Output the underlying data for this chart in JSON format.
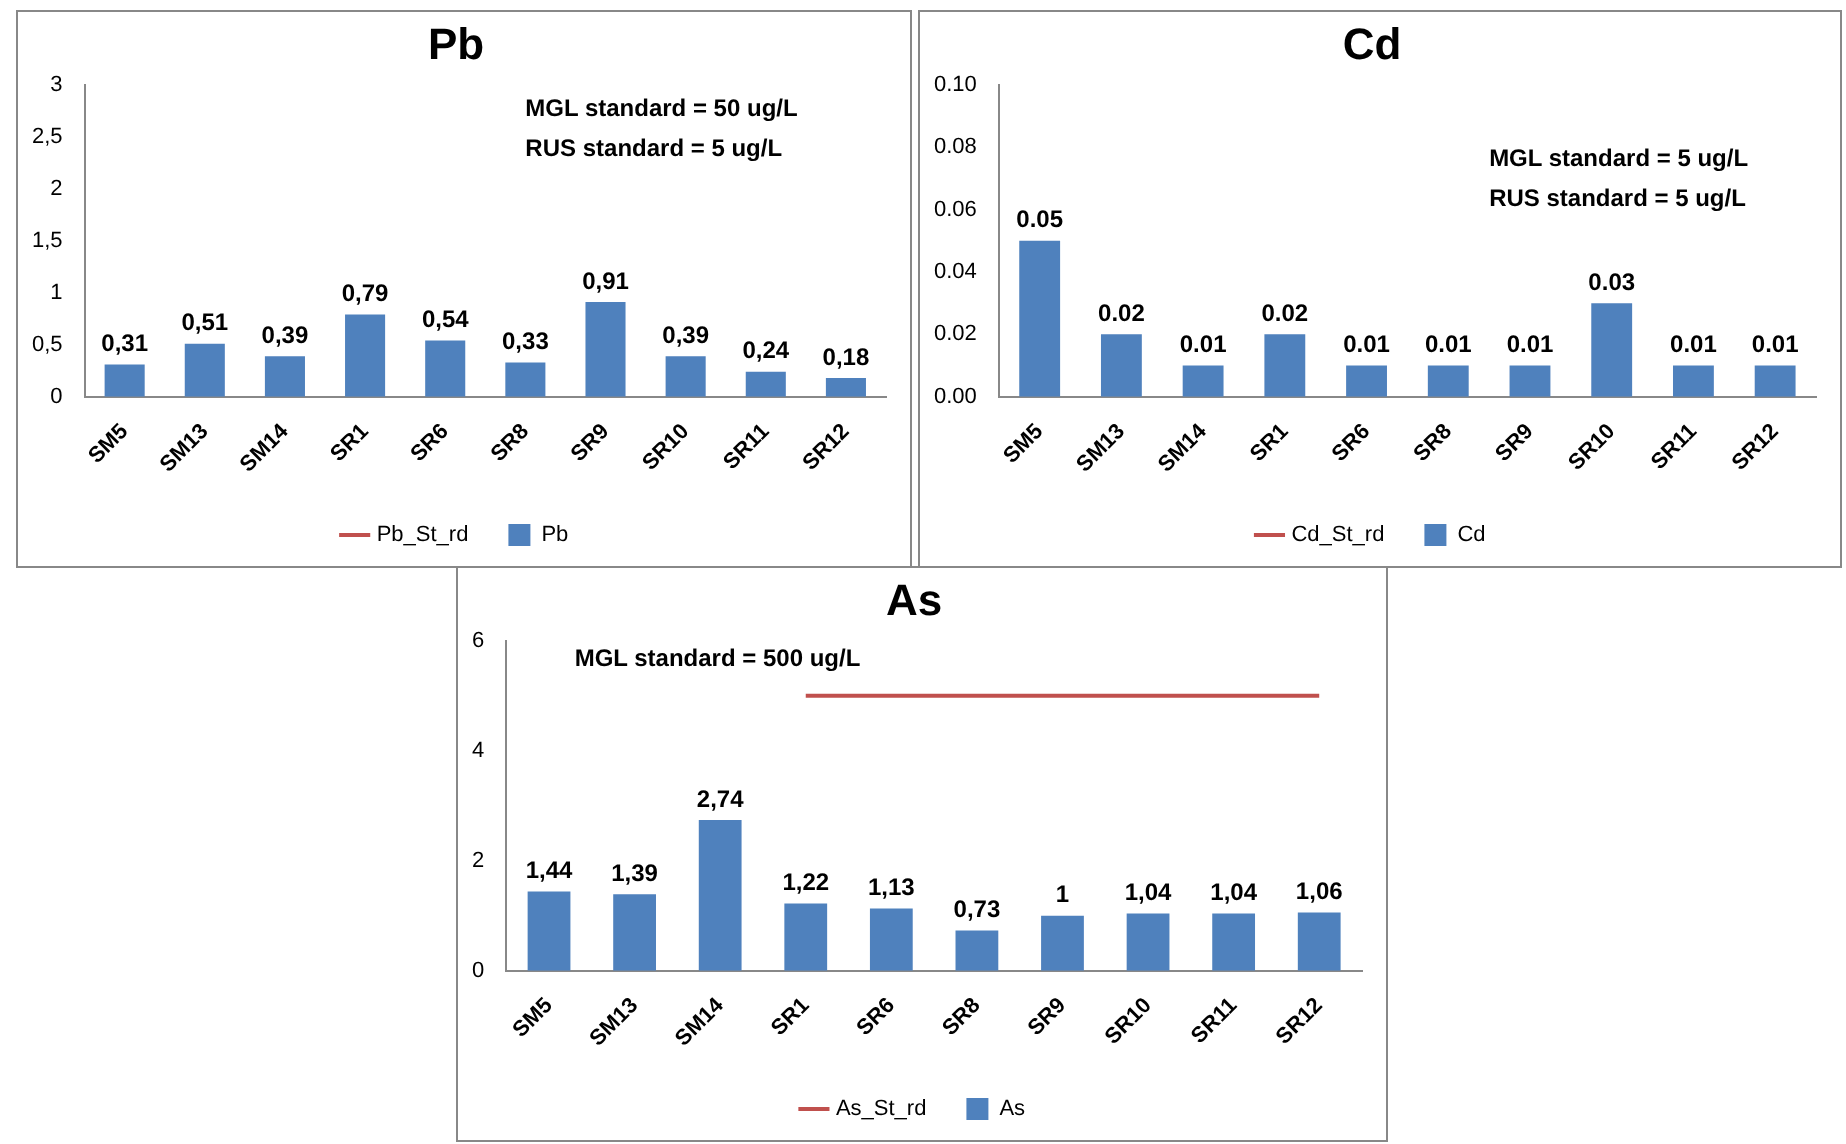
{
  "chart_data": [
    {
      "type": "bar",
      "title": "Pb",
      "categories": [
        "SM5",
        "SM13",
        "SM14",
        "SR1",
        "SR6",
        "SR8",
        "SR9",
        "SR10",
        "SR11",
        "SR12"
      ],
      "series": [
        {
          "name": "Pb",
          "color": "#4f81bd",
          "values": [
            0.31,
            0.51,
            0.39,
            0.79,
            0.54,
            0.33,
            0.91,
            0.39,
            0.24,
            0.18
          ],
          "value_labels": [
            "0,31",
            "0,51",
            "0,39",
            "0,79",
            "0,54",
            "0,33",
            "0,91",
            "0,39",
            "0,24",
            "0,18"
          ]
        },
        {
          "name": "Pb_St_rd",
          "type": "line",
          "color": "#c0504d",
          "values": [
            null,
            null,
            null,
            null,
            null,
            null,
            null,
            null,
            null,
            null
          ]
        }
      ],
      "ylim": [
        0,
        3
      ],
      "yticks": [
        {
          "value": 0,
          "label": "0"
        },
        {
          "value": 0.5,
          "label": "0,5"
        },
        {
          "value": 1,
          "label": "1"
        },
        {
          "value": 1.5,
          "label": "1,5"
        },
        {
          "value": 2,
          "label": "2"
        },
        {
          "value": 2.5,
          "label": "2,5"
        },
        {
          "value": 3,
          "label": "3"
        }
      ],
      "grid": false,
      "legend": "bottom",
      "annotations": [
        "MGL standard = 50 ug/L",
        "RUS standard = 5 ug/L"
      ]
    },
    {
      "type": "bar",
      "title": "Cd",
      "categories": [
        "SM5",
        "SM13",
        "SM14",
        "SR1",
        "SR6",
        "SR8",
        "SR9",
        "SR10",
        "SR11",
        "SR12"
      ],
      "series": [
        {
          "name": "Cd",
          "color": "#4f81bd",
          "values": [
            0.05,
            0.02,
            0.01,
            0.02,
            0.01,
            0.01,
            0.01,
            0.03,
            0.01,
            0.01
          ],
          "value_labels": [
            "0.05",
            "0.02",
            "0.01",
            "0.02",
            "0.01",
            "0.01",
            "0.01",
            "0.03",
            "0.01",
            "0.01"
          ]
        },
        {
          "name": "Cd_St_rd",
          "type": "line",
          "color": "#c0504d",
          "values": [
            null,
            null,
            null,
            null,
            null,
            null,
            null,
            null,
            null,
            null
          ]
        }
      ],
      "ylim": [
        0,
        0.1
      ],
      "yticks": [
        {
          "value": 0,
          "label": "0.00"
        },
        {
          "value": 0.02,
          "label": "0.02"
        },
        {
          "value": 0.04,
          "label": "0.04"
        },
        {
          "value": 0.06,
          "label": "0.06"
        },
        {
          "value": 0.08,
          "label": "0.08"
        },
        {
          "value": 0.1,
          "label": "0.10"
        }
      ],
      "grid": false,
      "legend": "bottom",
      "annotations": [
        "MGL standard = 5 ug/L",
        "RUS standard = 5 ug/L"
      ]
    },
    {
      "type": "bar",
      "title": "As",
      "categories": [
        "SM5",
        "SM13",
        "SM14",
        "SR1",
        "SR6",
        "SR8",
        "SR9",
        "SR10",
        "SR11",
        "SR12"
      ],
      "series": [
        {
          "name": "As",
          "color": "#4f81bd",
          "values": [
            1.44,
            1.39,
            2.74,
            1.22,
            1.13,
            0.73,
            1,
            1.04,
            1.04,
            1.06
          ],
          "value_labels": [
            "1,44",
            "1,39",
            "2,74",
            "1,22",
            "1,13",
            "0,73",
            "1",
            "1,04",
            "1,04",
            "1,06"
          ]
        },
        {
          "name": "As_St_rd",
          "type": "line",
          "color": "#c0504d",
          "values": [
            null,
            null,
            null,
            5,
            5,
            5,
            5,
            5,
            5,
            5
          ]
        }
      ],
      "ylim": [
        0,
        6
      ],
      "yticks": [
        0,
        2,
        4,
        6
      ],
      "grid": false,
      "legend": "bottom",
      "annotations": [
        "MGL standard = 500 ug/L"
      ]
    }
  ]
}
